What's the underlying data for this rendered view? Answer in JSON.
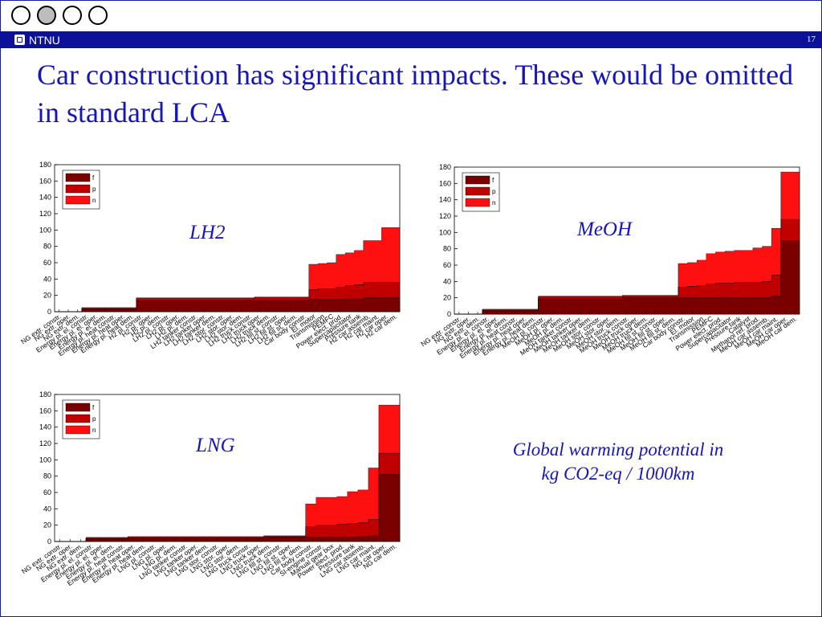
{
  "slide": {
    "title": "Car construction has significant impacts. These would be omitted in standard LCA",
    "logo_text": "NTNU",
    "page_number": "17",
    "caption_line1": "Global warming potential in",
    "caption_line2": "kg CO2-eq / 1000km"
  },
  "colors": {
    "header_bar": "#0c119a",
    "title_text": "#1515b8",
    "series_f": "#7a0000",
    "series_p": "#c00000",
    "series_n": "#ff1010"
  },
  "chart_data": [
    {
      "type": "area",
      "stacked": true,
      "label": "LH2",
      "ylim": [
        0,
        180
      ],
      "yticks": [
        0,
        20,
        40,
        60,
        80,
        100,
        120,
        140,
        160,
        180
      ],
      "legend_position": "top-left",
      "categories": [
        "NG extr. constr.",
        "NG extr. oper.",
        "NG extr. dem.",
        "Energy pl. el. constr.",
        "Energy pl. el. oper.",
        "Energy pl. el. dem.",
        "Energy pl. heat constr.",
        "Energy pl. heat oper.",
        "Energy pl. heat dem.",
        "H2 pl. constr.",
        "H2 pl. oper.",
        "H2 pl. dem.",
        "LH2 pl. constr.",
        "LH2 pl. oper.",
        "LH2 pl. dem.",
        "LH2 tanker constr.",
        "LH2 tanker oper.",
        "LH2 tanker dem.",
        "LH2 stor. constr.",
        "LH2 stor. oper.",
        "LH2 stor. dem.",
        "LH2 truck constr.",
        "LH2 truck oper.",
        "LH2 truck dem.",
        "LH2 fill st. constr.",
        "LH2 fill st. oper.",
        "LH2 fill st. dem.",
        "Car body constr.",
        "El. motor",
        "Transmission",
        "PEMFC",
        "Power elect. prod.",
        "Supercapacitator",
        "Pressure tank",
        "H2 car assemb.",
        "H2 car maint.",
        "H2 car oper.",
        "H2 car dem."
      ],
      "series": [
        {
          "name": "f",
          "values": [
            0,
            0,
            0,
            3,
            3,
            3,
            3,
            3,
            3,
            14,
            14,
            14,
            14,
            14,
            14,
            14,
            14,
            14,
            14,
            14,
            14,
            14,
            14,
            14,
            14,
            14,
            14,
            14,
            15,
            15,
            15,
            15,
            16,
            16,
            17,
            17,
            17,
            17
          ]
        },
        {
          "name": "p",
          "values": [
            0,
            0,
            0,
            1,
            1,
            1,
            1,
            1,
            1,
            2,
            2,
            2,
            2,
            2,
            2,
            2,
            2,
            2,
            2,
            2,
            2,
            2,
            3,
            3,
            3,
            3,
            3,
            3,
            12,
            13,
            13,
            15,
            16,
            17,
            19,
            19,
            19,
            19
          ]
        },
        {
          "name": "n",
          "values": [
            0,
            0,
            0,
            1,
            1,
            1,
            1,
            1,
            1,
            1,
            1,
            1,
            1,
            1,
            1,
            1,
            1,
            1,
            1,
            1,
            1,
            1,
            1,
            1,
            1,
            1,
            1,
            1,
            31,
            31,
            32,
            40,
            40,
            42,
            51,
            51,
            67,
            67
          ]
        }
      ]
    },
    {
      "type": "area",
      "stacked": true,
      "label": "MeOH",
      "ylim": [
        0,
        180
      ],
      "yticks": [
        0,
        20,
        40,
        60,
        80,
        100,
        120,
        140,
        160,
        180
      ],
      "legend_position": "top-left",
      "categories": [
        "NG extr. constr.",
        "NG extr. oper.",
        "NG extr. dem.",
        "Energy pl. el. constr.",
        "Energy pl. el. oper.",
        "Energy pl. el. dem.",
        "Energy pl. heat constr.",
        "Energy pl. heat oper.",
        "Energy pl. heat dem.",
        "MeOH pl. constr.",
        "MeOH pl. oper.",
        "MeOH pl. dem.",
        "MeOH tanker constr.",
        "MeOH tanker oper.",
        "MeOH tanker dem.",
        "MeOH stor. constr.",
        "MeOH stor. oper.",
        "MeOH stor. dem.",
        "MeOH truck constr.",
        "MeOH truck oper.",
        "MeOH truck dem.",
        "MeOH fill st. constr.",
        "MeOH fill st. oper.",
        "MeOH fill st. dem.",
        "Car body constr.",
        "El. motor",
        "Transmission",
        "PEMFC",
        "Power elect. prod.",
        "Supercapacitator",
        "Pressure tank",
        "Catalyst",
        "Methanol ref. prod.",
        "MeOH car assemb.",
        "MeOH car maint.",
        "MeOH car oper.",
        "MeOH car dem."
      ],
      "series": [
        {
          "name": "f",
          "values": [
            0,
            0,
            0,
            4,
            4,
            4,
            4,
            4,
            4,
            19,
            19,
            19,
            19,
            19,
            19,
            19,
            19,
            19,
            20,
            20,
            20,
            20,
            20,
            20,
            20,
            20,
            20,
            20,
            20,
            20,
            20,
            20,
            20,
            20,
            22,
            90,
            90
          ]
        },
        {
          "name": "p",
          "values": [
            0,
            0,
            0,
            1,
            1,
            1,
            1,
            1,
            1,
            2,
            2,
            2,
            2,
            2,
            2,
            2,
            2,
            2,
            2,
            2,
            2,
            2,
            2,
            2,
            13,
            14,
            15,
            17,
            18,
            18,
            19,
            19,
            19,
            20,
            26,
            26,
            26
          ]
        },
        {
          "name": "n",
          "values": [
            0,
            0,
            0,
            1,
            1,
            1,
            1,
            1,
            1,
            1,
            1,
            1,
            1,
            1,
            1,
            1,
            1,
            1,
            1,
            1,
            1,
            1,
            1,
            1,
            29,
            29,
            31,
            37,
            38,
            39,
            39,
            39,
            42,
            43,
            57,
            58,
            58
          ]
        }
      ]
    },
    {
      "type": "area",
      "stacked": true,
      "label": "LNG",
      "ylim": [
        0,
        180
      ],
      "yticks": [
        0,
        20,
        40,
        60,
        80,
        100,
        120,
        140,
        160,
        180
      ],
      "legend_position": "top-left",
      "categories": [
        "NG extr. constr.",
        "NG extr. oper.",
        "NG extr. dem.",
        "Energy pl. el. constr.",
        "Energy pl. el. oper.",
        "Energy pl. el. dem.",
        "Energy pl. heat constr.",
        "Energy pl. heat oper.",
        "Energy pl. heat dem.",
        "LNG pl. constr.",
        "LNG pl. oper.",
        "LNG pl. dem.",
        "LNG tanker constr.",
        "LNG tanker oper.",
        "LNG tanker dem.",
        "LNG stor. constr.",
        "LNG stor. oper.",
        "LNG stor. dem.",
        "LNG truck constr.",
        "LNG truck oper.",
        "LNG truck dem.",
        "LNG fill st. constr.",
        "LNG fill st. oper.",
        "LNG fill st. dem.",
        "Car body constr.",
        "SI-engine constr.",
        "Manual gear box",
        "Power elect. prod.",
        "Pressure tank",
        "LNG car assemb.",
        "LNG car maint.",
        "NG car oper.",
        "NG car dem."
      ],
      "series": [
        {
          "name": "f",
          "values": [
            0,
            0,
            0,
            3,
            3,
            3,
            3,
            4,
            4,
            4,
            4,
            4,
            4,
            4,
            4,
            4,
            4,
            4,
            4,
            4,
            5,
            5,
            5,
            5,
            5,
            5,
            5,
            5,
            5,
            6,
            7,
            82,
            82
          ]
        },
        {
          "name": "p",
          "values": [
            0,
            0,
            0,
            1,
            1,
            1,
            1,
            1,
            1,
            1,
            1,
            1,
            1,
            1,
            1,
            1,
            1,
            1,
            1,
            1,
            1,
            1,
            1,
            1,
            13,
            15,
            15,
            16,
            17,
            17,
            20,
            26,
            26
          ]
        },
        {
          "name": "n",
          "values": [
            0,
            0,
            0,
            1,
            1,
            1,
            1,
            1,
            1,
            1,
            1,
            1,
            1,
            1,
            1,
            1,
            1,
            1,
            1,
            1,
            1,
            1,
            1,
            1,
            28,
            34,
            34,
            34,
            39,
            40,
            63,
            59,
            59
          ]
        }
      ]
    }
  ]
}
